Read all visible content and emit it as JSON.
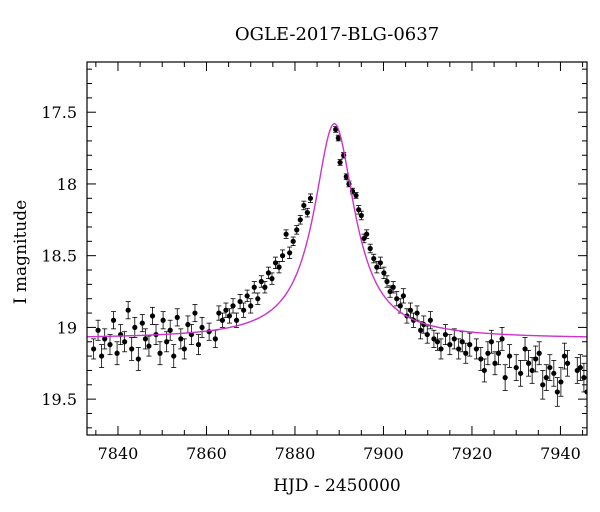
{
  "chart_data": {
    "type": "scatter",
    "title": "OGLE-2017-BLG-0637",
    "xlabel": "HJD - 2450000",
    "ylabel": "I magnitude",
    "xlim": [
      7833,
      7946
    ],
    "ylim": [
      19.75,
      17.15
    ],
    "y_inverted": true,
    "grid": false,
    "x_ticks": [
      7840,
      7860,
      7880,
      7900,
      7920,
      7940
    ],
    "x_tick_labels": [
      "7840",
      "7860",
      "7880",
      "7900",
      "7920",
      "7940"
    ],
    "y_ticks": [
      17.5,
      18,
      18.5,
      19,
      19.5
    ],
    "y_tick_labels": [
      "17.5",
      "18",
      "18.5",
      "19",
      "19.5"
    ],
    "colors": {
      "points": "#000000",
      "model": "#cc33cc"
    },
    "model": {
      "name": "",
      "baseline_mag": 19.08,
      "peak_mag": 17.58,
      "t0": 7888.9,
      "half_width": 5.6
    },
    "series": [
      {
        "name": "",
        "x": [
          7834.5,
          7835.5,
          7836.3,
          7837.0,
          7838.2,
          7839.0,
          7839.8,
          7840.6,
          7841.5,
          7842.3,
          7843.1,
          7843.8,
          7844.6,
          7845.5,
          7846.2,
          7847.0,
          7847.8,
          7848.6,
          7849.5,
          7850.2,
          7851.0,
          7851.8,
          7852.6,
          7853.4,
          7854.2,
          7855.0,
          7855.8,
          7856.6,
          7857.4,
          7858.2,
          7859.0,
          7860.6,
          7862.0,
          7862.8,
          7863.6,
          7864.4,
          7865.2,
          7866.0,
          7866.8,
          7867.6,
          7868.4,
          7869.2,
          7870.0,
          7870.8,
          7871.6,
          7872.4,
          7873.2,
          7874.0,
          7874.8,
          7875.6,
          7876.4,
          7877.2,
          7878.0,
          7878.8,
          7879.6,
          7880.4,
          7881.2,
          7882.0,
          7882.8,
          7883.5,
          7889.2,
          7889.8,
          7890.2,
          7891.0,
          7891.6,
          7892.2,
          7893.0,
          7893.8,
          7894.4,
          7895.0,
          7895.6,
          7896.2,
          7897.0,
          7897.8,
          7898.5,
          7899.3,
          7900.1,
          7900.8,
          7901.5,
          7902.2,
          7903.0,
          7903.8,
          7904.5,
          7905.3,
          7906.1,
          7906.8,
          7907.6,
          7908.4,
          7909.1,
          7909.9,
          7910.6,
          7911.4,
          7912.2,
          7913.0,
          7914.0,
          7915.0,
          7916.0,
          7917.0,
          7917.8,
          7918.6,
          7919.5,
          7921.0,
          7922.0,
          7922.8,
          7923.6,
          7924.4,
          7925.2,
          7926.0,
          7926.8,
          7927.5,
          7928.5,
          7930.0,
          7931.0,
          7932.0,
          7932.8,
          7933.6,
          7934.4,
          7935.2,
          7936.0,
          7936.8,
          7937.6,
          7938.5,
          7939.3,
          7940.1,
          7940.9,
          7941.6,
          7943.8,
          7944.5,
          7945.3,
          7946.0
        ],
        "y": [
          19.15,
          19.02,
          19.2,
          19.08,
          19.12,
          18.95,
          19.18,
          19.05,
          19.1,
          18.88,
          19.15,
          19.0,
          19.22,
          18.97,
          19.08,
          19.13,
          18.92,
          19.05,
          19.18,
          18.95,
          19.1,
          19.02,
          19.2,
          18.93,
          19.08,
          19.15,
          18.98,
          19.05,
          18.9,
          19.12,
          19.0,
          19.03,
          19.08,
          18.9,
          18.95,
          18.88,
          18.92,
          18.85,
          18.95,
          18.82,
          18.88,
          18.78,
          18.85,
          18.72,
          18.8,
          18.68,
          18.72,
          18.62,
          18.66,
          18.55,
          18.58,
          18.5,
          18.35,
          18.48,
          18.4,
          18.32,
          18.25,
          18.15,
          18.2,
          18.1,
          17.62,
          17.68,
          17.85,
          17.8,
          17.95,
          18.0,
          18.05,
          18.08,
          18.18,
          18.22,
          18.38,
          18.35,
          18.45,
          18.52,
          18.58,
          18.55,
          18.62,
          18.68,
          18.75,
          18.72,
          18.8,
          18.85,
          18.78,
          18.92,
          18.88,
          18.95,
          18.9,
          19.02,
          18.98,
          19.05,
          18.95,
          19.08,
          19.1,
          19.15,
          19.05,
          19.12,
          19.08,
          19.15,
          19.1,
          19.18,
          19.12,
          19.15,
          19.22,
          19.3,
          19.18,
          19.1,
          19.25,
          19.18,
          19.08,
          19.35,
          19.2,
          19.28,
          19.32,
          19.15,
          19.25,
          19.3,
          19.22,
          19.18,
          19.4,
          19.35,
          19.28,
          19.32,
          19.45,
          19.38,
          19.2,
          19.25,
          19.3,
          19.28,
          19.35,
          19.45
        ],
        "yerr": [
          0.07,
          0.07,
          0.08,
          0.07,
          0.07,
          0.06,
          0.08,
          0.07,
          0.07,
          0.06,
          0.08,
          0.07,
          0.08,
          0.06,
          0.07,
          0.07,
          0.06,
          0.07,
          0.08,
          0.06,
          0.07,
          0.07,
          0.08,
          0.06,
          0.07,
          0.07,
          0.06,
          0.07,
          0.06,
          0.07,
          0.07,
          0.06,
          0.06,
          0.05,
          0.05,
          0.05,
          0.05,
          0.05,
          0.05,
          0.05,
          0.05,
          0.04,
          0.05,
          0.04,
          0.04,
          0.04,
          0.04,
          0.04,
          0.04,
          0.04,
          0.04,
          0.04,
          0.03,
          0.04,
          0.03,
          0.03,
          0.03,
          0.03,
          0.03,
          0.03,
          0.02,
          0.02,
          0.02,
          0.02,
          0.02,
          0.02,
          0.02,
          0.02,
          0.03,
          0.03,
          0.03,
          0.03,
          0.03,
          0.03,
          0.04,
          0.04,
          0.04,
          0.04,
          0.04,
          0.04,
          0.05,
          0.05,
          0.05,
          0.05,
          0.05,
          0.05,
          0.05,
          0.06,
          0.06,
          0.06,
          0.06,
          0.06,
          0.06,
          0.07,
          0.07,
          0.07,
          0.07,
          0.07,
          0.07,
          0.07,
          0.08,
          0.07,
          0.08,
          0.08,
          0.08,
          0.08,
          0.08,
          0.08,
          0.08,
          0.09,
          0.08,
          0.09,
          0.09,
          0.08,
          0.09,
          0.09,
          0.09,
          0.08,
          0.1,
          0.09,
          0.09,
          0.09,
          0.1,
          0.1,
          0.09,
          0.09,
          0.09,
          0.09,
          0.1,
          0.1
        ]
      }
    ]
  }
}
